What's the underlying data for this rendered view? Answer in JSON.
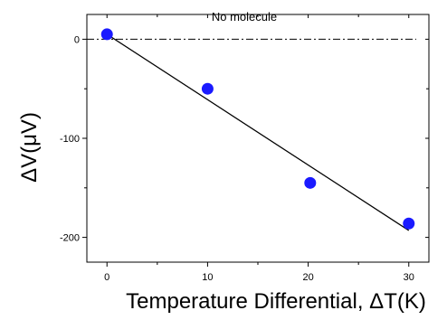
{
  "chart_data": {
    "type": "scatter",
    "title": "",
    "xlabel": "Temperature Differential, ΔT(K)",
    "ylabel": "ΔV(μV)",
    "xlim": [
      -2,
      32
    ],
    "ylim": [
      -225,
      25
    ],
    "xticks": [
      0,
      10,
      20,
      30
    ],
    "xtick_labels": [
      "0",
      "10",
      "20",
      "30"
    ],
    "yticks": [
      0,
      -100,
      -200
    ],
    "ytick_labels": [
      "0",
      "-100",
      "-200"
    ],
    "grid": false,
    "series": [
      {
        "x": [
          0,
          10,
          20.2,
          30
        ],
        "y": [
          5,
          -50,
          -145,
          -186
        ],
        "marker": "circle",
        "color": "#1a1aff"
      }
    ],
    "fit_line": {
      "x": [
        0,
        30
      ],
      "y": [
        5,
        -193
      ],
      "color": "#000000"
    },
    "reference_line": {
      "y": 0,
      "style": "dash-dot",
      "color": "#000000"
    },
    "annotations": [
      {
        "text": "No molecule",
        "position": "top-center"
      }
    ]
  }
}
